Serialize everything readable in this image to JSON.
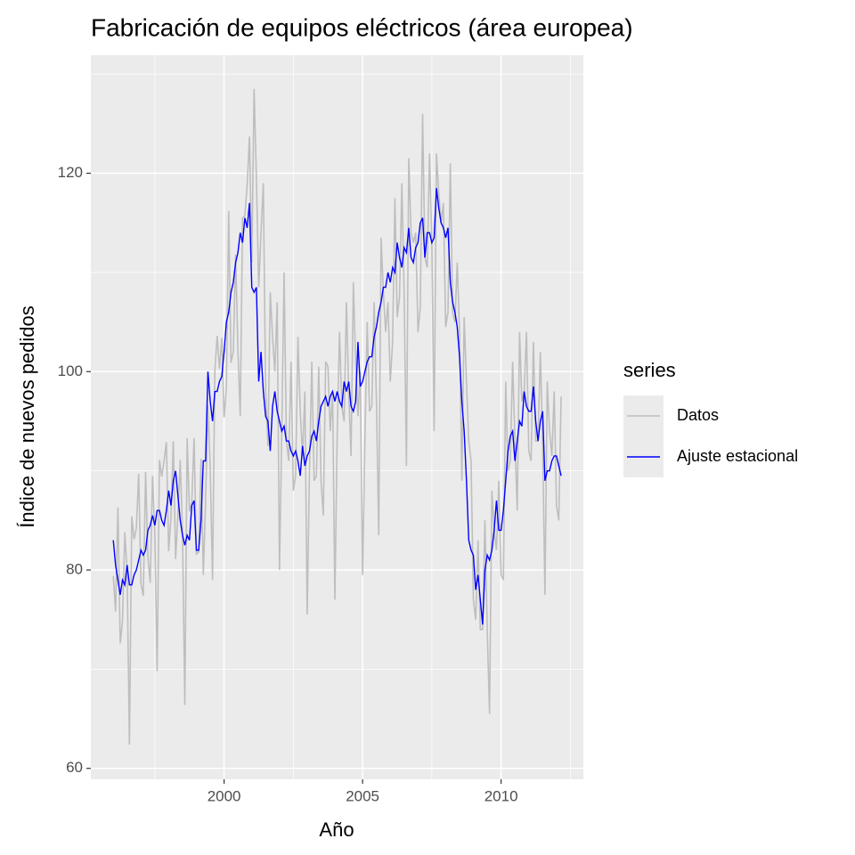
{
  "chart_data": {
    "type": "line",
    "title": "Fabricación de equipos eléctricos (área europea)",
    "x_label": "Año",
    "y_label": "Índice de nuevos pedidos",
    "legend_title": "series",
    "legend_position": "right",
    "grid": true,
    "xlim": [
      1995.19,
      2012.97
    ],
    "xticks": [
      2000,
      2005,
      2010
    ],
    "ylim": [
      58.9,
      131.9
    ],
    "yticks": [
      60,
      80,
      100,
      120
    ],
    "x": [
      1996.0,
      1996.083,
      1996.167,
      1996.25,
      1996.333,
      1996.417,
      1996.5,
      1996.583,
      1996.667,
      1996.75,
      1996.833,
      1996.917,
      1997.0,
      1997.083,
      1997.167,
      1997.25,
      1997.333,
      1997.417,
      1997.5,
      1997.583,
      1997.667,
      1997.75,
      1997.833,
      1997.917,
      1998.0,
      1998.083,
      1998.167,
      1998.25,
      1998.333,
      1998.417,
      1998.5,
      1998.583,
      1998.667,
      1998.75,
      1998.833,
      1998.917,
      1999.0,
      1999.083,
      1999.167,
      1999.25,
      1999.333,
      1999.417,
      1999.5,
      1999.583,
      1999.667,
      1999.75,
      1999.833,
      1999.917,
      2000.0,
      2000.083,
      2000.167,
      2000.25,
      2000.333,
      2000.417,
      2000.5,
      2000.583,
      2000.667,
      2000.75,
      2000.833,
      2000.917,
      2001.0,
      2001.083,
      2001.167,
      2001.25,
      2001.333,
      2001.417,
      2001.5,
      2001.583,
      2001.667,
      2001.75,
      2001.833,
      2001.917,
      2002.0,
      2002.083,
      2002.167,
      2002.25,
      2002.333,
      2002.417,
      2002.5,
      2002.583,
      2002.667,
      2002.75,
      2002.833,
      2002.917,
      2003.0,
      2003.083,
      2003.167,
      2003.25,
      2003.333,
      2003.417,
      2003.5,
      2003.583,
      2003.667,
      2003.75,
      2003.833,
      2003.917,
      2004.0,
      2004.083,
      2004.167,
      2004.25,
      2004.333,
      2004.417,
      2004.5,
      2004.583,
      2004.667,
      2004.75,
      2004.833,
      2004.917,
      2005.0,
      2005.083,
      2005.167,
      2005.25,
      2005.333,
      2005.417,
      2005.5,
      2005.583,
      2005.667,
      2005.75,
      2005.833,
      2005.917,
      2006.0,
      2006.083,
      2006.167,
      2006.25,
      2006.333,
      2006.417,
      2006.5,
      2006.583,
      2006.667,
      2006.75,
      2006.833,
      2006.917,
      2007.0,
      2007.083,
      2007.167,
      2007.25,
      2007.333,
      2007.417,
      2007.5,
      2007.583,
      2007.667,
      2007.75,
      2007.833,
      2007.917,
      2008.0,
      2008.083,
      2008.167,
      2008.25,
      2008.333,
      2008.417,
      2008.5,
      2008.583,
      2008.667,
      2008.75,
      2008.833,
      2008.917,
      2009.0,
      2009.083,
      2009.167,
      2009.25,
      2009.333,
      2009.417,
      2009.5,
      2009.583,
      2009.667,
      2009.75,
      2009.833,
      2009.917,
      2010.0,
      2010.083,
      2010.167,
      2010.25,
      2010.333,
      2010.417,
      2010.5,
      2010.583,
      2010.667,
      2010.75,
      2010.833,
      2010.917,
      2011.0,
      2011.083,
      2011.167,
      2011.25,
      2011.333,
      2011.417,
      2011.5,
      2011.583,
      2011.667,
      2011.75,
      2011.833,
      2011.917,
      2012.0,
      2012.083,
      2012.167
    ],
    "series": [
      {
        "name": "Datos",
        "color": "#bebebe",
        "values": [
          79.4,
          75.8,
          86.3,
          72.6,
          74.9,
          83.8,
          79.8,
          62.4,
          85.4,
          83.1,
          84.2,
          89.7,
          78.6,
          77.4,
          89.9,
          81.3,
          78.7,
          89.5,
          83.7,
          69.8,
          91.1,
          89.4,
          91.0,
          92.9,
          81.9,
          85.4,
          93.0,
          81.1,
          85.6,
          91.1,
          83.5,
          66.4,
          93.3,
          85.9,
          86.8,
          93.3,
          81.6,
          81.8,
          91.2,
          79.5,
          87.0,
          96.6,
          90.3,
          79.0,
          100.1,
          103.6,
          100.3,
          103.4,
          95.4,
          98.3,
          116.2,
          100.9,
          102.0,
          111.8,
          102.2,
          95.5,
          115.5,
          115.7,
          118.8,
          123.7,
          111.0,
          128.5,
          119.5,
          108.5,
          114.0,
          119.0,
          98.0,
          92.5,
          108.0,
          103.5,
          100.0,
          107.0,
          80.0,
          94.0,
          110.0,
          93.0,
          91.0,
          101.0,
          88.0,
          89.5,
          103.5,
          96.0,
          91.5,
          98.0,
          75.5,
          90.0,
          101.0,
          89.0,
          89.5,
          100.5,
          89.0,
          85.5,
          101.0,
          100.5,
          94.0,
          98.0,
          77.0,
          93.5,
          104.0,
          96.5,
          95.0,
          107.0,
          98.0,
          91.5,
          109.0,
          101.0,
          95.5,
          100.0,
          79.5,
          93.0,
          105.0,
          96.0,
          96.5,
          107.0,
          97.0,
          83.5,
          113.5,
          108.0,
          104.0,
          107.0,
          99.0,
          103.0,
          117.5,
          105.5,
          107.5,
          119.0,
          108.0,
          90.5,
          121.5,
          114.0,
          113.0,
          114.0,
          104.0,
          106.5,
          126.0,
          111.5,
          110.5,
          122.0,
          113.0,
          94.0,
          122.0,
          118.0,
          115.0,
          117.0,
          104.5,
          106.0,
          121.0,
          106.0,
          105.0,
          111.0,
          104.0,
          89.0,
          105.5,
          99.0,
          93.0,
          91.0,
          77.0,
          75.0,
          83.0,
          74.0,
          74.0,
          85.0,
          74.0,
          65.5,
          88.0,
          84.0,
          82.0,
          89.0,
          79.5,
          79.0,
          99.0,
          90.0,
          91.0,
          101.0,
          93.0,
          86.0,
          104.0,
          97.0,
          98.0,
          104.0,
          92.0,
          91.0,
          103.0,
          93.0,
          93.0,
          102.0,
          93.0,
          77.5,
          99.0,
          94.0,
          91.5,
          98.0,
          86.5,
          85.0,
          97.5
        ]
      },
      {
        "name": "Ajuste estacional",
        "color": "#0000ff",
        "values": [
          83.0,
          80.5,
          79.0,
          77.5,
          79.0,
          78.5,
          80.5,
          78.5,
          78.5,
          79.5,
          80.0,
          81.0,
          82.0,
          81.5,
          82.0,
          84.0,
          84.5,
          85.5,
          84.5,
          86.0,
          86.0,
          85.0,
          84.5,
          86.0,
          88.0,
          86.5,
          89.0,
          90.0,
          87.5,
          85.0,
          83.5,
          82.5,
          83.5,
          83.0,
          86.5,
          87.0,
          82.0,
          82.0,
          85.0,
          91.0,
          91.0,
          100.0,
          97.0,
          95.0,
          98.0,
          98.0,
          99.0,
          99.5,
          102.0,
          105.0,
          106.0,
          108.0,
          109.0,
          111.0,
          112.0,
          114.0,
          113.0,
          115.5,
          114.5,
          117.0,
          108.5,
          108.0,
          108.5,
          99.0,
          102.0,
          98.0,
          95.5,
          95.0,
          92.0,
          96.5,
          98.0,
          96.0,
          95.0,
          94.0,
          94.5,
          93.0,
          93.0,
          92.0,
          91.5,
          92.0,
          91.0,
          89.5,
          92.5,
          90.5,
          91.5,
          92.0,
          93.5,
          94.0,
          93.0,
          95.0,
          96.5,
          97.0,
          97.5,
          96.5,
          97.5,
          98.0,
          97.0,
          98.0,
          97.0,
          96.5,
          99.0,
          98.0,
          99.0,
          96.5,
          96.0,
          97.0,
          103.0,
          98.5,
          99.0,
          100.0,
          101.0,
          101.5,
          101.5,
          103.5,
          104.5,
          106.0,
          107.0,
          108.5,
          108.5,
          110.0,
          109.0,
          110.5,
          110.0,
          113.0,
          111.5,
          110.5,
          112.5,
          112.0,
          114.5,
          111.5,
          111.0,
          112.5,
          113.0,
          115.0,
          115.5,
          111.5,
          114.0,
          114.0,
          113.0,
          113.5,
          118.5,
          116.5,
          115.0,
          114.5,
          113.5,
          114.5,
          109.0,
          107.0,
          106.0,
          104.5,
          101.5,
          97.0,
          94.0,
          89.0,
          83.0,
          82.0,
          81.5,
          78.0,
          79.5,
          77.0,
          74.5,
          80.0,
          81.5,
          81.0,
          82.0,
          84.0,
          87.0,
          84.0,
          84.0,
          86.0,
          89.0,
          92.0,
          93.5,
          94.0,
          91.0,
          93.0,
          95.0,
          94.5,
          98.0,
          96.5,
          96.0,
          96.0,
          98.5,
          95.0,
          93.0,
          95.0,
          96.0,
          89.0,
          90.0,
          90.0,
          91.0,
          91.5,
          91.5,
          90.5,
          89.5
        ]
      }
    ]
  }
}
